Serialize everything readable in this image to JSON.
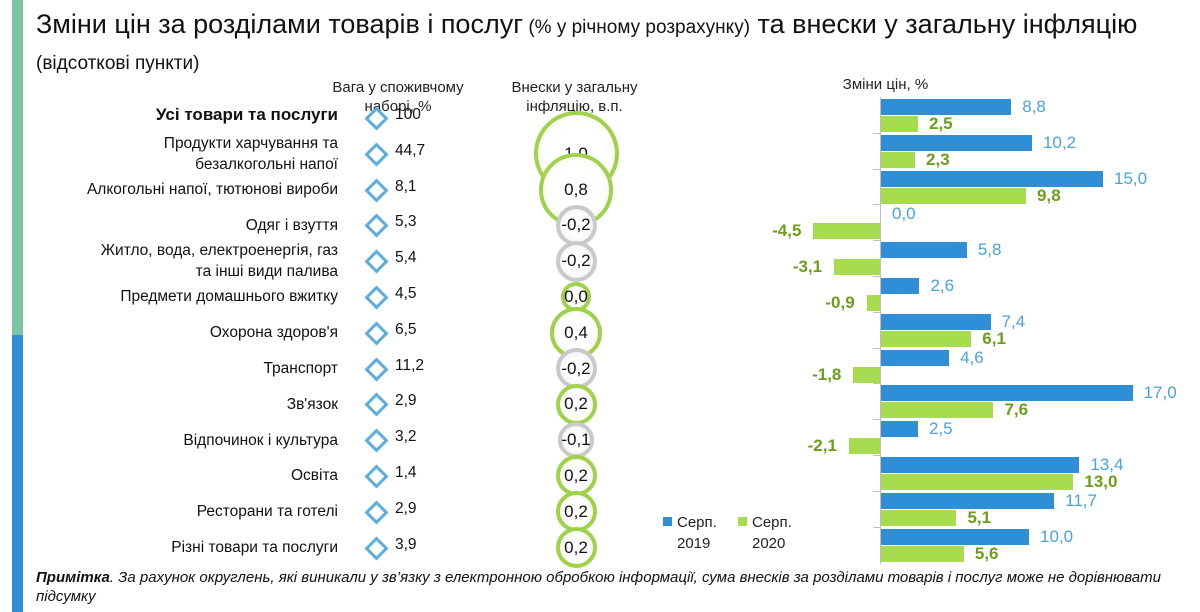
{
  "page": {
    "title_main_1": "Зміни цін за розділами товарів і послуг",
    "title_small_1": " (% у річному розрахунку)",
    "title_main_2": " та внески у загальну інфляцію",
    "title_small_2": " (відсоткові пункти)"
  },
  "headers": {
    "weight": "Вага у споживчому наборі, %",
    "contribution": "Внески у загальну інфляцію, в.п.",
    "price_change": "Зміни цін, %"
  },
  "colors": {
    "series_2019": "#2f8fd6",
    "series_2020": "#a7dc4f",
    "accent_top": "#7cc4a5",
    "accent_bottom": "#2f8fd6"
  },
  "chart_data": {
    "type": "bar",
    "orientation": "horizontal",
    "categories": [
      "Усі товари та послуги",
      "Продукти харчування та безалкогольні напої",
      "Алкогольні напої, тютюнові вироби",
      "Одяг і взуття",
      "Житло, вода, електроенергія, газ та інші види палива",
      "Предмети домашнього вжитку",
      "Охорона здоров'я",
      "Транспорт",
      "Зв'язок",
      "Відпочинок і культура",
      "Освіта",
      "Ресторани та готелі",
      "Різні товари та послуги"
    ],
    "category_lines": [
      [
        "Усі товари та послуги"
      ],
      [
        "Продукти харчування та",
        "безалкогольні напої"
      ],
      [
        "Алкогольні напої, тютюнові вироби"
      ],
      [
        "Одяг і взуття"
      ],
      [
        "Житло, вода, електроенергія, газ",
        "та інші види палива"
      ],
      [
        "Предмети домашнього вжитку"
      ],
      [
        "Охорона здоров'я"
      ],
      [
        "Транспорт"
      ],
      [
        "Зв'язок"
      ],
      [
        "Відпочинок і культура"
      ],
      [
        "Освіта"
      ],
      [
        "Ресторани та готелі"
      ],
      [
        "Різні товари та послуги"
      ]
    ],
    "weights": [
      "100",
      "44,7",
      "8,1",
      "5,3",
      "5,4",
      "4,5",
      "6,5",
      "11,2",
      "2,9",
      "3,2",
      "1,4",
      "2,9",
      "3,9"
    ],
    "contributions": [
      null,
      1.0,
      0.8,
      -0.2,
      -0.2,
      0.0,
      0.4,
      -0.2,
      0.2,
      -0.1,
      0.2,
      0.2,
      0.2
    ],
    "contribution_labels": [
      "",
      "1,0",
      "0,8",
      "-0,2",
      "-0,2",
      "0,0",
      "0,4",
      "-0,2",
      "0,2",
      "-0,1",
      "0,2",
      "0,2",
      "0,2"
    ],
    "series": [
      {
        "name": "Серп. 2019",
        "values": [
          8.8,
          10.2,
          15.0,
          0.0,
          5.8,
          2.6,
          7.4,
          4.6,
          17.0,
          2.5,
          13.4,
          11.7,
          10.0
        ],
        "labels": [
          "8,8",
          "10,2",
          "15,0",
          "0,0",
          "5,8",
          "2,6",
          "7,4",
          "4,6",
          "17,0",
          "2,5",
          "13,4",
          "11,7",
          "10,0"
        ]
      },
      {
        "name": "Серп. 2020",
        "values": [
          2.5,
          2.3,
          9.8,
          -4.5,
          -3.1,
          -0.9,
          6.1,
          -1.8,
          7.6,
          -2.1,
          13.0,
          5.1,
          5.6
        ],
        "labels": [
          "2,5",
          "2,3",
          "9,8",
          "-4,5",
          "-3,1",
          "-0,9",
          "6,1",
          "-1,8",
          "7,6",
          "-2,1",
          "13,0",
          "5,1",
          "5,6"
        ]
      }
    ],
    "legend": [
      {
        "line1": "Серп.",
        "line2": "2019"
      },
      {
        "line1": "Серп.",
        "line2": "2020"
      }
    ]
  },
  "note": {
    "bold": "Примітка",
    "text": ". За рахунок округлень, які виникали у зв’язку з електронною обробкою інформації, сума внесків за розділами товарів і послуг може не дорівнювати підсумку"
  }
}
